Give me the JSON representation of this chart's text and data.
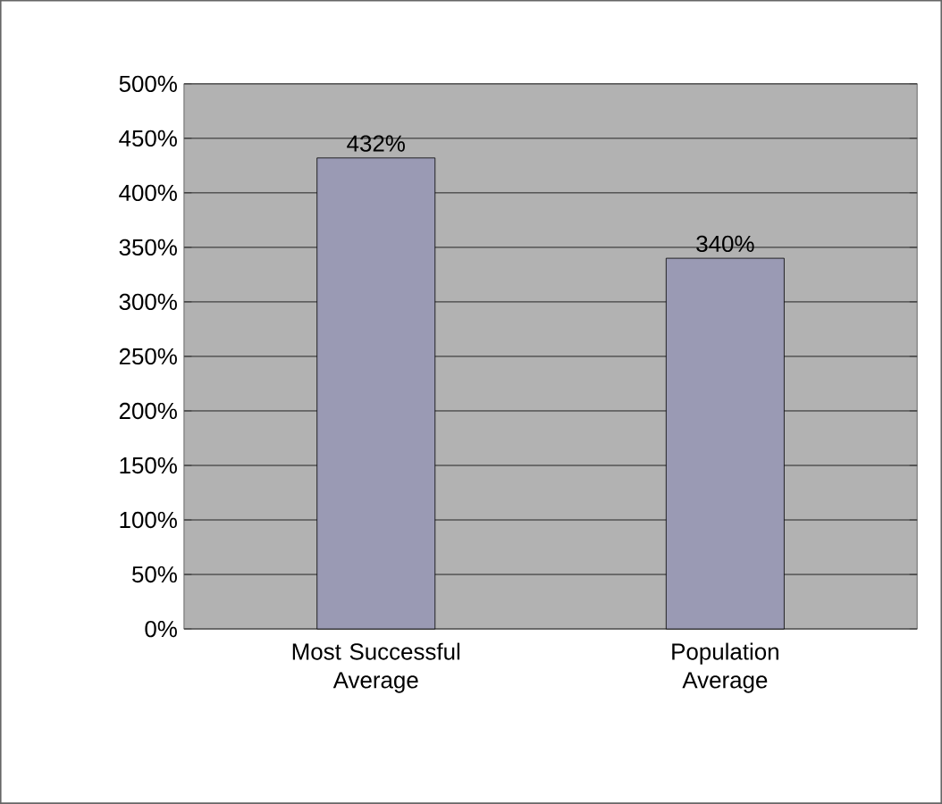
{
  "chart_data": {
    "type": "bar",
    "categories": [
      "Most Successful Average",
      "Population Average"
    ],
    "values": [
      432,
      340
    ],
    "value_labels": [
      "432%",
      "340%"
    ],
    "color": "#9a9ab4",
    "ylim": [
      0,
      500
    ],
    "yticks": [
      {
        "value": 0,
        "label": "0%"
      },
      {
        "value": 50,
        "label": "50%"
      },
      {
        "value": 100,
        "label": "100%"
      },
      {
        "value": 150,
        "label": "150%"
      },
      {
        "value": 200,
        "label": "200%"
      },
      {
        "value": 250,
        "label": "250%"
      },
      {
        "value": 300,
        "label": "300%"
      },
      {
        "value": 350,
        "label": "350%"
      },
      {
        "value": 400,
        "label": "400%"
      },
      {
        "value": 450,
        "label": "450%"
      },
      {
        "value": 500,
        "label": "500%"
      }
    ],
    "grid": "y"
  }
}
